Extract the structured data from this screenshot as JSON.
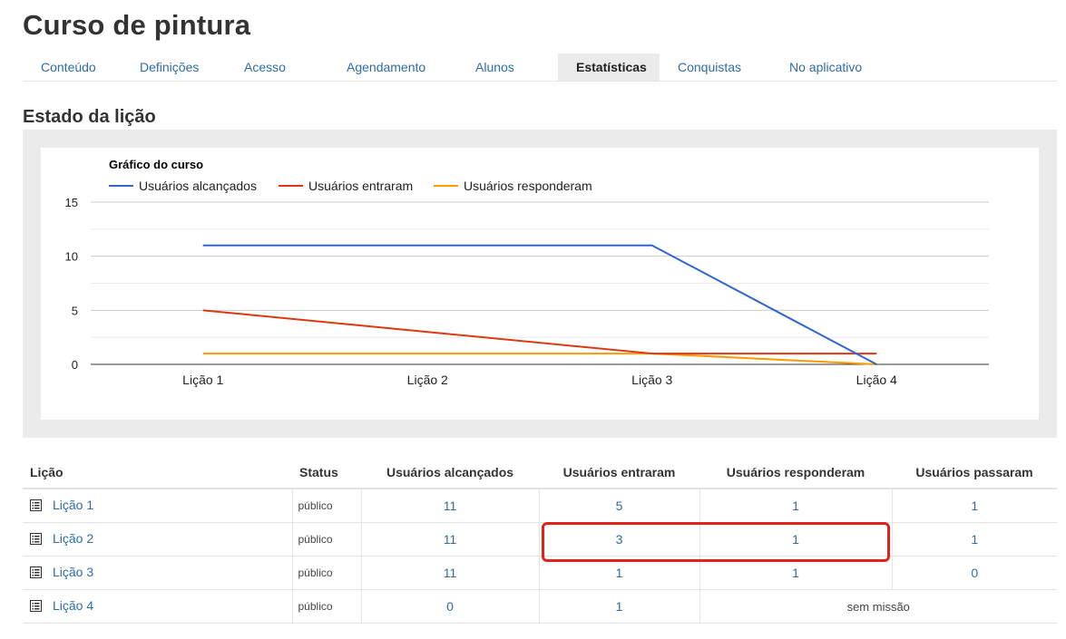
{
  "page": {
    "title": "Curso de pintura"
  },
  "tabs": [
    {
      "label": "Conteúdo",
      "active": false
    },
    {
      "label": "Definições",
      "active": false
    },
    {
      "label": "Acesso",
      "active": false
    },
    {
      "label": "Agendamento",
      "active": false
    },
    {
      "label": "Alunos",
      "active": false
    },
    {
      "label": "Estatísticas",
      "active": true
    },
    {
      "label": "Conquistas",
      "active": false
    },
    {
      "label": "No aplicativo",
      "active": false
    }
  ],
  "section": {
    "title": "Estado da lição"
  },
  "chart_data": {
    "type": "line",
    "title": "Gráfico do curso",
    "categories": [
      "Lição 1",
      "Lição 2",
      "Lição 3",
      "Lição 4"
    ],
    "series": [
      {
        "name": "Usuários alcançados",
        "color": "#3366cc",
        "values": [
          11,
          11,
          11,
          0
        ]
      },
      {
        "name": "Usuários entraram",
        "color": "#dc3912",
        "values": [
          5,
          3,
          1,
          1
        ]
      },
      {
        "name": "Usuários responderam",
        "color": "#ff9900",
        "values": [
          1,
          1,
          1,
          0
        ]
      }
    ],
    "ylim": [
      0,
      15
    ],
    "yticks": [
      "0",
      "5",
      "10",
      "15"
    ],
    "grid": true,
    "legend": "top"
  },
  "table": {
    "headers": {
      "lesson": "Lição",
      "status": "Status",
      "reached": "Usuários alcançados",
      "entered": "Usuários entraram",
      "answered": "Usuários responderam",
      "passed": "Usuários passaram"
    },
    "rows": [
      {
        "lesson": "Lição 1",
        "status": "público",
        "reached": "11",
        "entered": "5",
        "answered": "1",
        "passed": "1"
      },
      {
        "lesson": "Lição 2",
        "status": "público",
        "reached": "11",
        "entered": "3",
        "answered": "1",
        "passed": "1"
      },
      {
        "lesson": "Lição 3",
        "status": "público",
        "reached": "11",
        "entered": "1",
        "answered": "1",
        "passed": "0"
      },
      {
        "lesson": "Lição 4",
        "status": "público",
        "reached": "0",
        "entered": "1",
        "no_quest": "sem missão"
      }
    ]
  },
  "icons": {
    "lesson": "document-list-icon"
  },
  "colors": {
    "link": "#2e6da4",
    "highlight": "#e2231a"
  }
}
